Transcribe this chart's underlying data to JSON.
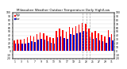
{
  "title": "Milwaukee Weather Outdoor Temperature Daily High/Low",
  "title_fontsize": 3.0,
  "days": [
    1,
    2,
    3,
    4,
    5,
    6,
    7,
    8,
    9,
    10,
    11,
    12,
    13,
    14,
    15,
    16,
    17,
    18,
    19,
    20,
    21,
    22,
    23,
    24,
    25,
    26,
    27,
    28,
    29,
    30,
    31
  ],
  "highs": [
    28,
    30,
    30,
    32,
    35,
    40,
    38,
    44,
    48,
    46,
    40,
    36,
    34,
    52,
    58,
    55,
    50,
    62,
    60,
    64,
    68,
    72,
    70,
    58,
    48,
    52,
    46,
    42,
    38,
    54,
    44
  ],
  "lows": [
    18,
    20,
    20,
    20,
    22,
    26,
    24,
    30,
    32,
    30,
    26,
    22,
    20,
    36,
    38,
    34,
    32,
    44,
    42,
    46,
    48,
    52,
    50,
    38,
    32,
    34,
    28,
    26,
    22,
    36,
    28
  ],
  "high_color": "#ff0000",
  "low_color": "#0000cc",
  "dashed_day_indices": [
    21,
    22,
    23
  ],
  "ylim_min": -20,
  "ylim_max": 100,
  "ytick_vals": [
    -20,
    -10,
    0,
    10,
    20,
    30,
    40,
    50,
    60,
    70,
    80,
    90,
    100
  ],
  "ytick_labels": [
    "-20",
    "-10",
    "0",
    "10",
    "20",
    "30",
    "40",
    "50",
    "60",
    "70",
    "80",
    "90",
    "100"
  ],
  "bg_color": "#ffffff",
  "legend_high": "High",
  "legend_low": "Low"
}
